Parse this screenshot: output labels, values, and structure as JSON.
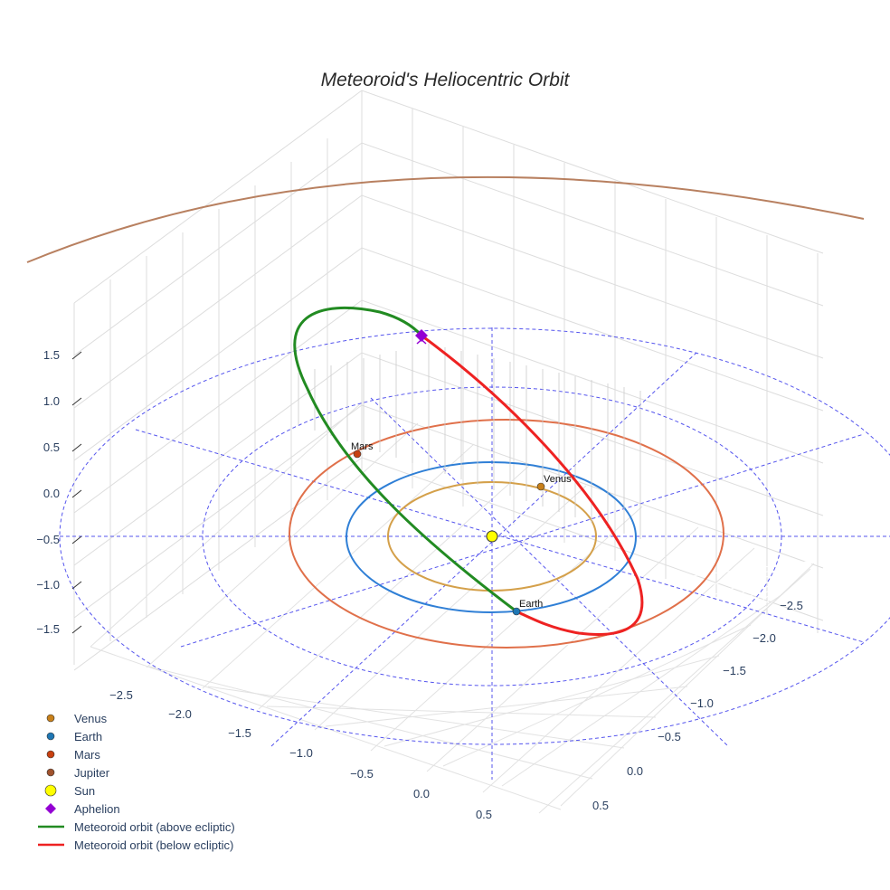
{
  "chart_data": {
    "type": "scatter3d",
    "title": "Meteoroid's Heliocentric Orbit",
    "axes": {
      "x_ticks": [
        "−2.5",
        "−2.0",
        "−1.5",
        "−1.0",
        "−0.5",
        "0.0",
        "0.5"
      ],
      "y_ticks": [
        "−2.5",
        "−2.0",
        "−1.5",
        "−1.0",
        "−0.5",
        "0.0",
        "0.5"
      ],
      "z_ticks": [
        "1.5",
        "1.0",
        "0.5",
        "0.0",
        "−0.5",
        "−1.0",
        "−1.5"
      ],
      "x_range": [
        -2.8,
        0.7
      ],
      "y_range": [
        -2.8,
        0.7
      ],
      "z_range": [
        -1.8,
        1.9
      ]
    },
    "planets": [
      {
        "name": "Venus",
        "label": "Venus",
        "orbit_radius_au": 0.72,
        "color": "#c8801a",
        "orbit_color": "#d4a04a"
      },
      {
        "name": "Earth",
        "label": "Earth",
        "orbit_radius_au": 1.0,
        "color": "#1f77b4",
        "orbit_color": "#2f7fd6"
      },
      {
        "name": "Mars",
        "label": "Mars",
        "orbit_radius_au": 1.52,
        "color": "#c84010",
        "orbit_color": "#e0704a"
      },
      {
        "name": "Jupiter",
        "orbit_radius_au": 5.2,
        "color": "#a0522d",
        "orbit_color": "#b88060"
      }
    ],
    "sun": {
      "name": "Sun",
      "color": "#ffff00"
    },
    "aphelion": {
      "name": "Aphelion",
      "color": "#9400d3"
    },
    "meteoroid_orbit": {
      "above_color": "#228b22",
      "below_color": "#ee2222"
    },
    "legend": [
      {
        "label": "Venus",
        "marker": "circle",
        "color": "#c8801a"
      },
      {
        "label": "Earth",
        "marker": "circle",
        "color": "#1f77b4"
      },
      {
        "label": "Mars",
        "marker": "circle",
        "color": "#c84010"
      },
      {
        "label": "Jupiter",
        "marker": "circle",
        "color": "#a0522d"
      },
      {
        "label": "Sun",
        "marker": "circle-large",
        "color": "#ffff00"
      },
      {
        "label": "Aphelion",
        "marker": "diamond",
        "color": "#9400d3"
      },
      {
        "label": "Meteoroid orbit (above ecliptic)",
        "marker": "line",
        "color": "#228b22"
      },
      {
        "label": "Meteoroid orbit (below ecliptic)",
        "marker": "line",
        "color": "#ee2222"
      }
    ],
    "legend_position": "bottom-left"
  }
}
